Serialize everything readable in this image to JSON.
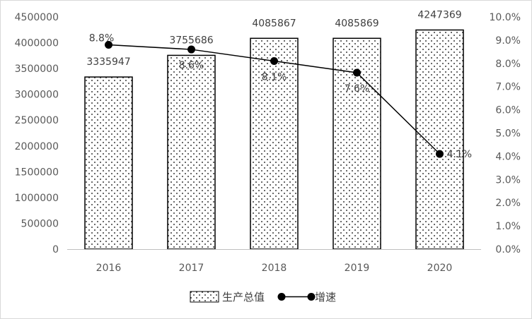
{
  "chart_data": {
    "type": "bar",
    "categories": [
      "2016",
      "2017",
      "2018",
      "2019",
      "2020"
    ],
    "series": [
      {
        "name": "生产总值",
        "type": "bar",
        "axis": "left",
        "values": [
          3335947,
          3755686,
          4085867,
          4085869,
          4247369
        ],
        "labels": [
          "3335947",
          "3755686",
          "4085867",
          "4085869",
          "4247369"
        ],
        "style": "dotted-pattern"
      },
      {
        "name": "增速",
        "type": "line",
        "axis": "right",
        "values": [
          8.8,
          8.6,
          8.1,
          7.6,
          4.1
        ],
        "labels": [
          "8.8%",
          "8.6%",
          "8.1%",
          "7.6%",
          "4.1%"
        ]
      }
    ],
    "y_left": {
      "ylim": [
        0,
        4500000
      ],
      "ticks": [
        "0",
        "500000",
        "1000000",
        "1500000",
        "2000000",
        "2500000",
        "3000000",
        "3500000",
        "4000000",
        "4500000"
      ]
    },
    "y_right": {
      "ylim": [
        0,
        10
      ],
      "ticks": [
        "0.0%",
        "1.0%",
        "2.0%",
        "3.0%",
        "4.0%",
        "5.0%",
        "6.0%",
        "7.0%",
        "8.0%",
        "9.0%",
        "10.0%"
      ]
    },
    "grid": false,
    "legend_position": "bottom",
    "title": "",
    "xlabel": "",
    "ylabel": ""
  },
  "colors": {
    "bar_stroke": "#000000",
    "bar_dots": "#000000",
    "line": "#000000",
    "axis": "#bfbfbf",
    "text": "#595959"
  }
}
